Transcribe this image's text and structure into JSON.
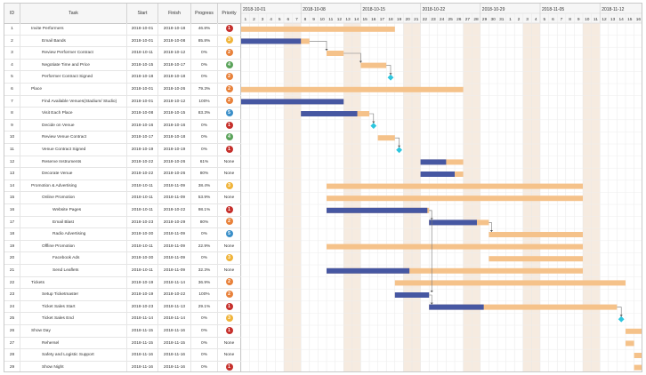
{
  "columns": {
    "id": "ID",
    "task": "Task",
    "start": "Start",
    "finish": "Finish",
    "progress": "Progress",
    "priority": "Priority"
  },
  "colors": {
    "bar_planned": "#f5c28a",
    "bar_done": "#4657a2",
    "milestone": "#2dc6de",
    "weekend": "#f6ebe0",
    "prio_high": "#c6302c",
    "prio_med": "#e8813a",
    "prio_low": "#5aa35a",
    "prio_info": "#3a8fc9",
    "prio_mid": "#f0b43a"
  },
  "timeline": {
    "start_date": "2018-10-01",
    "weeks": [
      "2018-10-01",
      "2018-10-08",
      "2018-10-15",
      "2018-10-22",
      "2018-10-29",
      "2018-11-05",
      "2018-11-12"
    ],
    "days": [
      "1",
      "2",
      "3",
      "4",
      "5",
      "6",
      "7",
      "8",
      "9",
      "10",
      "11",
      "12",
      "13",
      "14",
      "15",
      "16",
      "17",
      "18",
      "19",
      "20",
      "21",
      "22",
      "23",
      "24",
      "25",
      "26",
      "27",
      "28",
      "29",
      "30",
      "31",
      "1",
      "2",
      "3",
      "4",
      "5",
      "6",
      "7",
      "8",
      "9",
      "10",
      "11",
      "12",
      "13",
      "14",
      "15",
      "16",
      "17",
      "18"
    ]
  },
  "tasks": [
    {
      "id": "1",
      "name": "Invite Performers",
      "level": 0,
      "start": "2018-10-01",
      "finish": "2018-10-18",
      "progress": "46.8%",
      "priority": "1",
      "prio_color": "#c6302c"
    },
    {
      "id": "2",
      "name": "Email Bands",
      "level": 1,
      "start": "2018-10-01",
      "finish": "2018-10-08",
      "progress": "85.8%",
      "priority": "3",
      "prio_color": "#f0b43a"
    },
    {
      "id": "3",
      "name": "Review Performer Contract",
      "level": 1,
      "start": "2018-10-11",
      "finish": "2018-10-12",
      "progress": "0%",
      "priority": "2",
      "prio_color": "#e8813a"
    },
    {
      "id": "4",
      "name": "Negotiate Time and Price",
      "level": 1,
      "start": "2018-10-15",
      "finish": "2018-10-17",
      "progress": "0%",
      "priority": "4",
      "prio_color": "#5aa35a"
    },
    {
      "id": "5",
      "name": "Performer Contract Signed",
      "level": 1,
      "start": "2018-10-18",
      "finish": "2018-10-18",
      "progress": "0%",
      "priority": "2",
      "prio_color": "#e8813a"
    },
    {
      "id": "6",
      "name": "Place",
      "level": 0,
      "start": "2018-10-01",
      "finish": "2018-10-26",
      "progress": "79.3%",
      "priority": "2",
      "prio_color": "#e8813a"
    },
    {
      "id": "7",
      "name": "Find Available Venues(Stadium/ Studio)",
      "level": 1,
      "start": "2018-10-01",
      "finish": "2018-10-12",
      "progress": "100%",
      "priority": "2",
      "prio_color": "#e8813a"
    },
    {
      "id": "8",
      "name": "Visit Each Place",
      "level": 1,
      "start": "2018-10-08",
      "finish": "2018-10-15",
      "progress": "83.3%",
      "priority": "5",
      "prio_color": "#3a8fc9"
    },
    {
      "id": "9",
      "name": "Decide on Venue",
      "level": 1,
      "start": "2018-10-16",
      "finish": "2018-10-16",
      "progress": "0%",
      "priority": "1",
      "prio_color": "#c6302c"
    },
    {
      "id": "10",
      "name": "Review Venue Contract",
      "level": 1,
      "start": "2018-10-17",
      "finish": "2018-10-18",
      "progress": "0%",
      "priority": "4",
      "prio_color": "#5aa35a"
    },
    {
      "id": "11",
      "name": "Venue Contract Signed",
      "level": 1,
      "start": "2018-10-19",
      "finish": "2018-10-19",
      "progress": "0%",
      "priority": "1",
      "prio_color": "#c6302c"
    },
    {
      "id": "12",
      "name": "Reserve Instruments",
      "level": 1,
      "start": "2018-10-22",
      "finish": "2018-10-26",
      "progress": "61%",
      "priority": "None",
      "prio_color": ""
    },
    {
      "id": "13",
      "name": "Decorate Venue",
      "level": 1,
      "start": "2018-10-22",
      "finish": "2018-10-26",
      "progress": "80%",
      "priority": "None",
      "prio_color": ""
    },
    {
      "id": "14",
      "name": "Promotion & Advertising",
      "level": 0,
      "start": "2018-10-11",
      "finish": "2018-11-09",
      "progress": "38.4%",
      "priority": "3",
      "prio_color": "#f0b43a"
    },
    {
      "id": "15",
      "name": "Online Promotion",
      "level": 1,
      "start": "2018-10-11",
      "finish": "2018-11-09",
      "progress": "53.9%",
      "priority": "None",
      "prio_color": ""
    },
    {
      "id": "16",
      "name": "Website Pages",
      "level": 2,
      "start": "2018-10-11",
      "finish": "2018-10-22",
      "progress": "98.1%",
      "priority": "1",
      "prio_color": "#c6302c"
    },
    {
      "id": "17",
      "name": "Email Blast",
      "level": 2,
      "start": "2018-10-23",
      "finish": "2018-10-29",
      "progress": "80%",
      "priority": "2",
      "prio_color": "#e8813a"
    },
    {
      "id": "18",
      "name": "Radio Advertising",
      "level": 2,
      "start": "2018-10-30",
      "finish": "2018-11-09",
      "progress": "0%",
      "priority": "5",
      "prio_color": "#3a8fc9"
    },
    {
      "id": "19",
      "name": "Offline Promotion",
      "level": 1,
      "start": "2018-10-11",
      "finish": "2018-11-09",
      "progress": "22.9%",
      "priority": "None",
      "prio_color": ""
    },
    {
      "id": "20",
      "name": "Facebook Ads",
      "level": 2,
      "start": "2018-10-30",
      "finish": "2018-11-09",
      "progress": "0%",
      "priority": "3",
      "prio_color": "#f0b43a"
    },
    {
      "id": "21",
      "name": "Send Leaflets",
      "level": 2,
      "start": "2018-10-11",
      "finish": "2018-11-09",
      "progress": "32.3%",
      "priority": "None",
      "prio_color": ""
    },
    {
      "id": "22",
      "name": "Tickets",
      "level": 0,
      "start": "2018-10-19",
      "finish": "2018-11-14",
      "progress": "36.9%",
      "priority": "2",
      "prio_color": "#e8813a"
    },
    {
      "id": "23",
      "name": "Setup Ticketmaster",
      "level": 1,
      "start": "2018-10-19",
      "finish": "2018-10-22",
      "progress": "100%",
      "priority": "2",
      "prio_color": "#e8813a"
    },
    {
      "id": "24",
      "name": "Ticket Sales Start",
      "level": 1,
      "start": "2018-10-23",
      "finish": "2018-11-13",
      "progress": "29.1%",
      "priority": "1",
      "prio_color": "#c6302c"
    },
    {
      "id": "25",
      "name": "Ticket Sales End",
      "level": 1,
      "start": "2018-11-14",
      "finish": "2018-11-14",
      "progress": "0%",
      "priority": "3",
      "prio_color": "#f0b43a"
    },
    {
      "id": "26",
      "name": "Show Day",
      "level": 0,
      "start": "2018-11-15",
      "finish": "2018-11-16",
      "progress": "0%",
      "priority": "1",
      "prio_color": "#c6302c"
    },
    {
      "id": "27",
      "name": "Rehersel",
      "level": 1,
      "start": "2018-11-15",
      "finish": "2018-11-15",
      "progress": "0%",
      "priority": "None",
      "prio_color": ""
    },
    {
      "id": "28",
      "name": "Safety and Logistic Support",
      "level": 1,
      "start": "2018-11-16",
      "finish": "2018-11-16",
      "progress": "0%",
      "priority": "None",
      "prio_color": ""
    },
    {
      "id": "29",
      "name": "Show Night",
      "level": 1,
      "start": "2018-11-16",
      "finish": "2018-11-16",
      "progress": "0%",
      "priority": "1",
      "prio_color": "#c6302c"
    }
  ],
  "bars": [
    {
      "row": 1,
      "type": "bar",
      "s": 0,
      "e": 18,
      "done": 0
    },
    {
      "row": 2,
      "type": "bar",
      "s": 0,
      "e": 8,
      "done": 7
    },
    {
      "row": 3,
      "type": "bar",
      "s": 10,
      "e": 12,
      "done": 0
    },
    {
      "row": 4,
      "type": "bar",
      "s": 14,
      "e": 17,
      "done": 0
    },
    {
      "row": 5,
      "type": "milestone",
      "s": 17.5
    },
    {
      "row": 6,
      "type": "bar",
      "s": 0,
      "e": 26,
      "done": 0
    },
    {
      "row": 7,
      "type": "bar",
      "s": 0,
      "e": 12,
      "done": 12
    },
    {
      "row": 8,
      "type": "bar",
      "s": 7,
      "e": 15,
      "done": 13.6
    },
    {
      "row": 9,
      "type": "milestone",
      "s": 15.5
    },
    {
      "row": 10,
      "type": "bar",
      "s": 16,
      "e": 18,
      "done": 0
    },
    {
      "row": 11,
      "type": "milestone",
      "s": 18.5
    },
    {
      "row": 12,
      "type": "bar",
      "s": 21,
      "e": 26,
      "done": 24
    },
    {
      "row": 13,
      "type": "bar",
      "s": 21,
      "e": 26,
      "done": 25
    },
    {
      "row": 14,
      "type": "bar",
      "s": 10,
      "e": 40,
      "done": 0
    },
    {
      "row": 15,
      "type": "bar",
      "s": 10,
      "e": 40,
      "done": 0
    },
    {
      "row": 16,
      "type": "bar",
      "s": 10,
      "e": 22,
      "done": 21.8
    },
    {
      "row": 17,
      "type": "bar",
      "s": 22,
      "e": 29,
      "done": 27.6
    },
    {
      "row": 18,
      "type": "bar",
      "s": 29,
      "e": 40,
      "done": 0
    },
    {
      "row": 19,
      "type": "bar",
      "s": 10,
      "e": 40,
      "done": 0
    },
    {
      "row": 20,
      "type": "bar",
      "s": 29,
      "e": 40,
      "done": 0
    },
    {
      "row": 21,
      "type": "bar",
      "s": 10,
      "e": 40,
      "done": 19.7
    },
    {
      "row": 22,
      "type": "bar",
      "s": 18,
      "e": 45,
      "done": 0
    },
    {
      "row": 23,
      "type": "bar",
      "s": 18,
      "e": 22,
      "done": 22
    },
    {
      "row": 24,
      "type": "bar",
      "s": 22,
      "e": 44,
      "done": 28.4
    },
    {
      "row": 25,
      "type": "milestone",
      "s": 44.5
    },
    {
      "row": 26,
      "type": "bar",
      "s": 45,
      "e": 47,
      "done": 0
    },
    {
      "row": 27,
      "type": "bar",
      "s": 45,
      "e": 46,
      "done": 0
    },
    {
      "row": 28,
      "type": "bar",
      "s": 46,
      "e": 47,
      "done": 0
    },
    {
      "row": 29,
      "type": "bar",
      "s": 46,
      "e": 47,
      "done": 0
    }
  ],
  "links": [
    {
      "from_row": 2,
      "from_e": 8,
      "to_row": 3,
      "to_s": 10
    },
    {
      "from_row": 3,
      "from_e": 12,
      "to_row": 4,
      "to_s": 14
    },
    {
      "from_row": 4,
      "from_e": 17,
      "to_row": 5,
      "to_s": 17.5
    },
    {
      "from_row": 8,
      "from_e": 15,
      "to_row": 9,
      "to_s": 15.5
    },
    {
      "from_row": 10,
      "from_e": 18,
      "to_row": 11,
      "to_s": 18.5
    },
    {
      "from_row": 16,
      "from_e": 22,
      "to_row": 17,
      "to_s": 22
    },
    {
      "from_row": 16,
      "from_e": 22,
      "to_row": 23,
      "to_s": 22
    },
    {
      "from_row": 17,
      "from_e": 29,
      "to_row": 18,
      "to_s": 29
    },
    {
      "from_row": 23,
      "from_e": 22,
      "to_row": 24,
      "to_s": 22
    },
    {
      "from_row": 24,
      "from_e": 44,
      "to_row": 25,
      "to_s": 44.5
    }
  ]
}
